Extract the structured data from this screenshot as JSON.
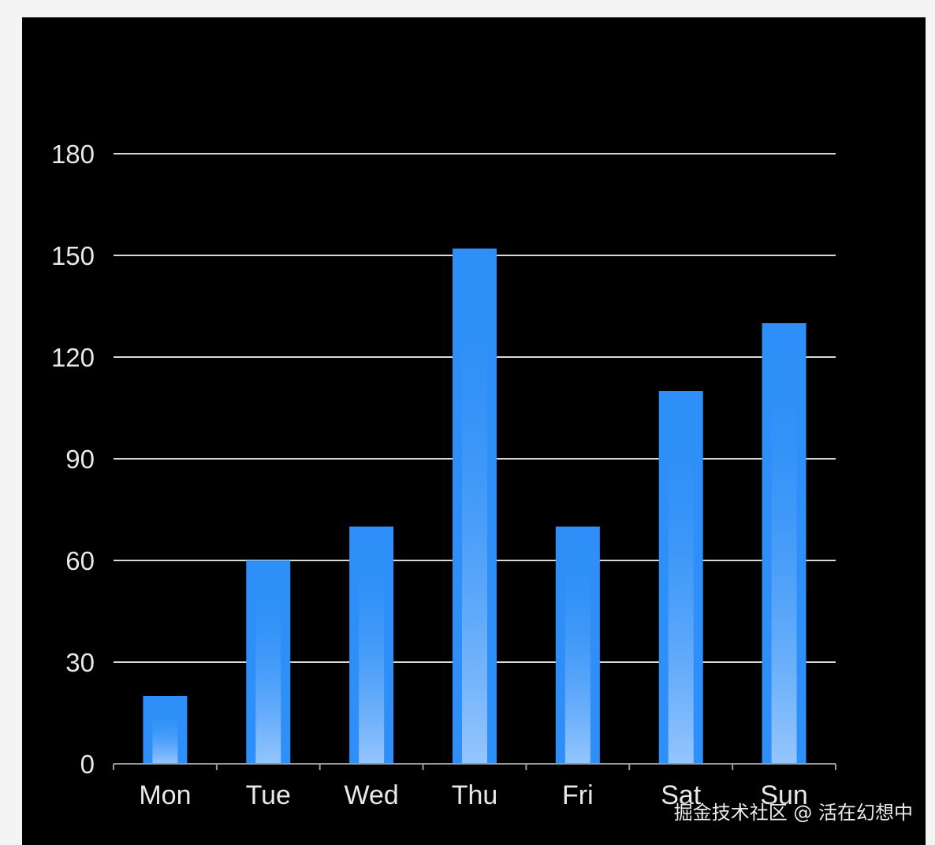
{
  "chart_data": {
    "type": "bar",
    "categories": [
      "Mon",
      "Tue",
      "Wed",
      "Thu",
      "Fri",
      "Sat",
      "Sun"
    ],
    "series": [
      {
        "values": [
          20,
          60,
          70,
          152,
          70,
          110,
          130
        ]
      }
    ],
    "yticks": [
      "0",
      "30",
      "60",
      "90",
      "120",
      "150",
      "180"
    ],
    "ylim": [
      0,
      180
    ],
    "title": "",
    "xlabel": "",
    "ylabel": "",
    "grid": true,
    "colors": {
      "bar": "#2d8ff7",
      "bar_highlight": "#9cc8ff",
      "grid": "#d9d9d9",
      "axis": "#9a9a9a",
      "text": "#e8e8e8",
      "background": "#000000"
    }
  },
  "watermark": "掘金技术社区 @ 活在幻想中"
}
